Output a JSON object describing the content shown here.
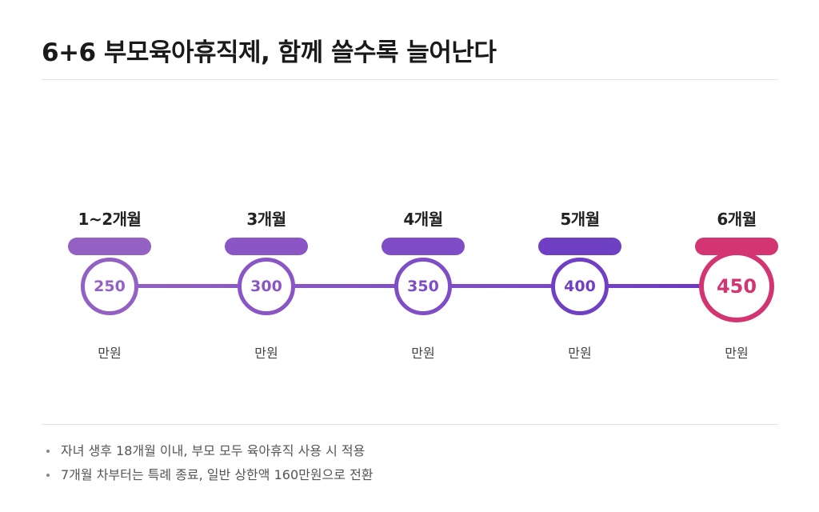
{
  "title": "6+6 부모육아휴직제, 함께 쓸수록 늘어난다",
  "stages": [
    {
      "period": "1~2개월",
      "amount": "250",
      "unit": "만원",
      "highlight": false,
      "color": "#9360c4"
    },
    {
      "period": "3개월",
      "amount": "300",
      "unit": "만원",
      "highlight": false,
      "color": "#8a56c6"
    },
    {
      "period": "4개월",
      "amount": "350",
      "unit": "만원",
      "highlight": false,
      "color": "#7f4ec6"
    },
    {
      "period": "5개월",
      "amount": "400",
      "unit": "만원",
      "highlight": false,
      "color": "#7040c4"
    },
    {
      "period": "6개월",
      "amount": "450",
      "unit": "만원",
      "highlight": true,
      "color": "#d23572"
    }
  ],
  "notes": [
    "자녀 생후 18개월 이내, 부모 모두 육아휴직 사용 시 적용",
    "7개월 차부터는 특례 종료, 일반 상한액 160만원으로 전환"
  ],
  "colors": {
    "accent_purple": "#8a56c6",
    "accent_pink": "#d23572",
    "text_dark": "#1a1a1a",
    "text_muted": "#555555"
  }
}
